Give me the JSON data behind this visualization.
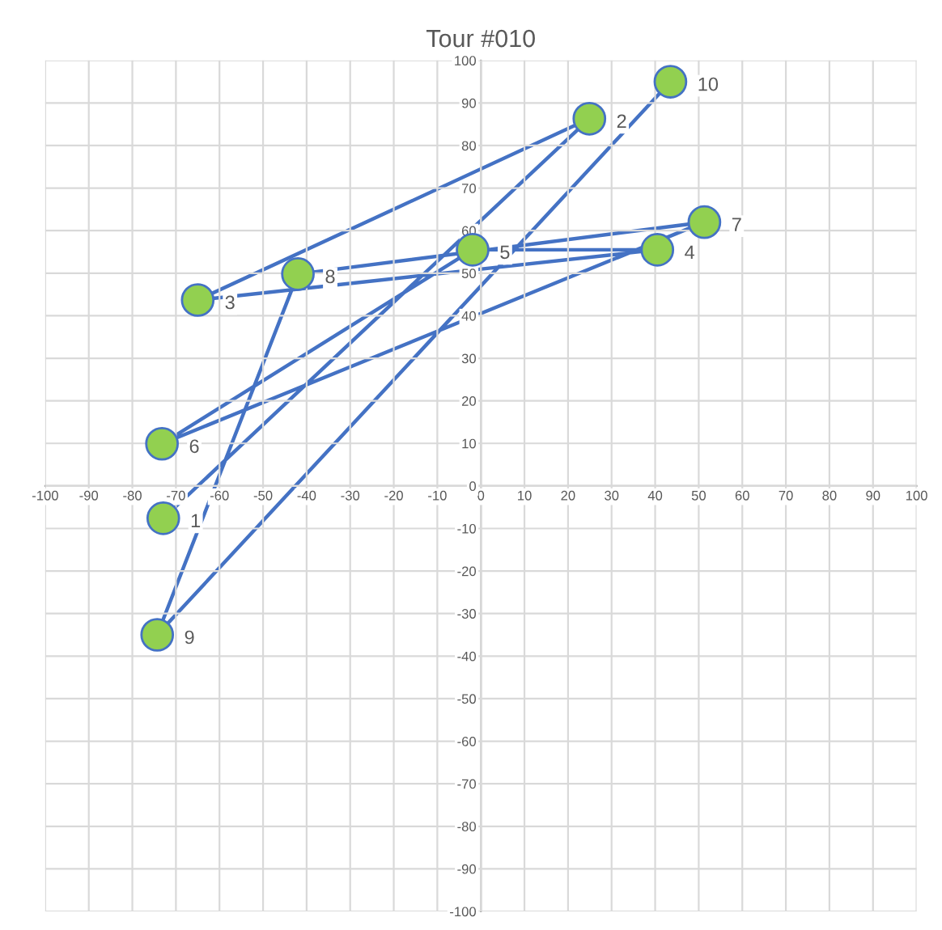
{
  "chart_data": {
    "type": "line",
    "title": "Tour #010",
    "x": [
      -72.9,
      24.9,
      -65,
      40.5,
      -1.9,
      -73.2,
      51.3,
      -42,
      -74.3,
      43.5
    ],
    "series": [
      {
        "color": "#4472c4",
        "colors": [
          "#92d050",
          "#92d050",
          "#92d050",
          "#92d050",
          "#92d050",
          "#92d050",
          "#92d050",
          "#92d050",
          "#92d050",
          "#92d050"
        ],
        "values": [
          -7.6,
          86.3,
          43.7,
          55.5,
          55.5,
          9.9,
          62,
          49.8,
          -35,
          95
        ]
      }
    ],
    "annotations": [
      {
        "text": "1",
        "x": -72.9,
        "y": -7.6
      },
      {
        "text": "2",
        "x": 24.9,
        "y": 86.3
      },
      {
        "text": "3",
        "x": -65,
        "y": 43.7
      },
      {
        "text": "4",
        "x": 40.5,
        "y": 55.5
      },
      {
        "text": "5",
        "x": -1.9,
        "y": 55.5
      },
      {
        "text": "6",
        "x": -73.2,
        "y": 9.9
      },
      {
        "text": "7",
        "x": 51.3,
        "y": 62
      },
      {
        "text": "8",
        "x": -42,
        "y": 49.8
      },
      {
        "text": "9",
        "x": -74.3,
        "y": -35
      },
      {
        "text": "10",
        "x": 43.5,
        "y": 95
      }
    ],
    "xlim": [
      -100,
      100
    ],
    "xticks": [
      -100,
      -90,
      -80,
      -70,
      -60,
      -50,
      -40,
      -30,
      -20,
      -10,
      0,
      10,
      20,
      30,
      40,
      50,
      60,
      70,
      80,
      90,
      100
    ],
    "ylim": [
      -100,
      100
    ],
    "yticks": [
      -100,
      -90,
      -80,
      -70,
      -60,
      -50,
      -40,
      -30,
      -20,
      -10,
      0,
      10,
      20,
      30,
      40,
      50,
      60,
      70,
      80,
      90,
      100
    ],
    "grid": true,
    "marker": "circle",
    "line_style": "solid",
    "legend": false
  }
}
